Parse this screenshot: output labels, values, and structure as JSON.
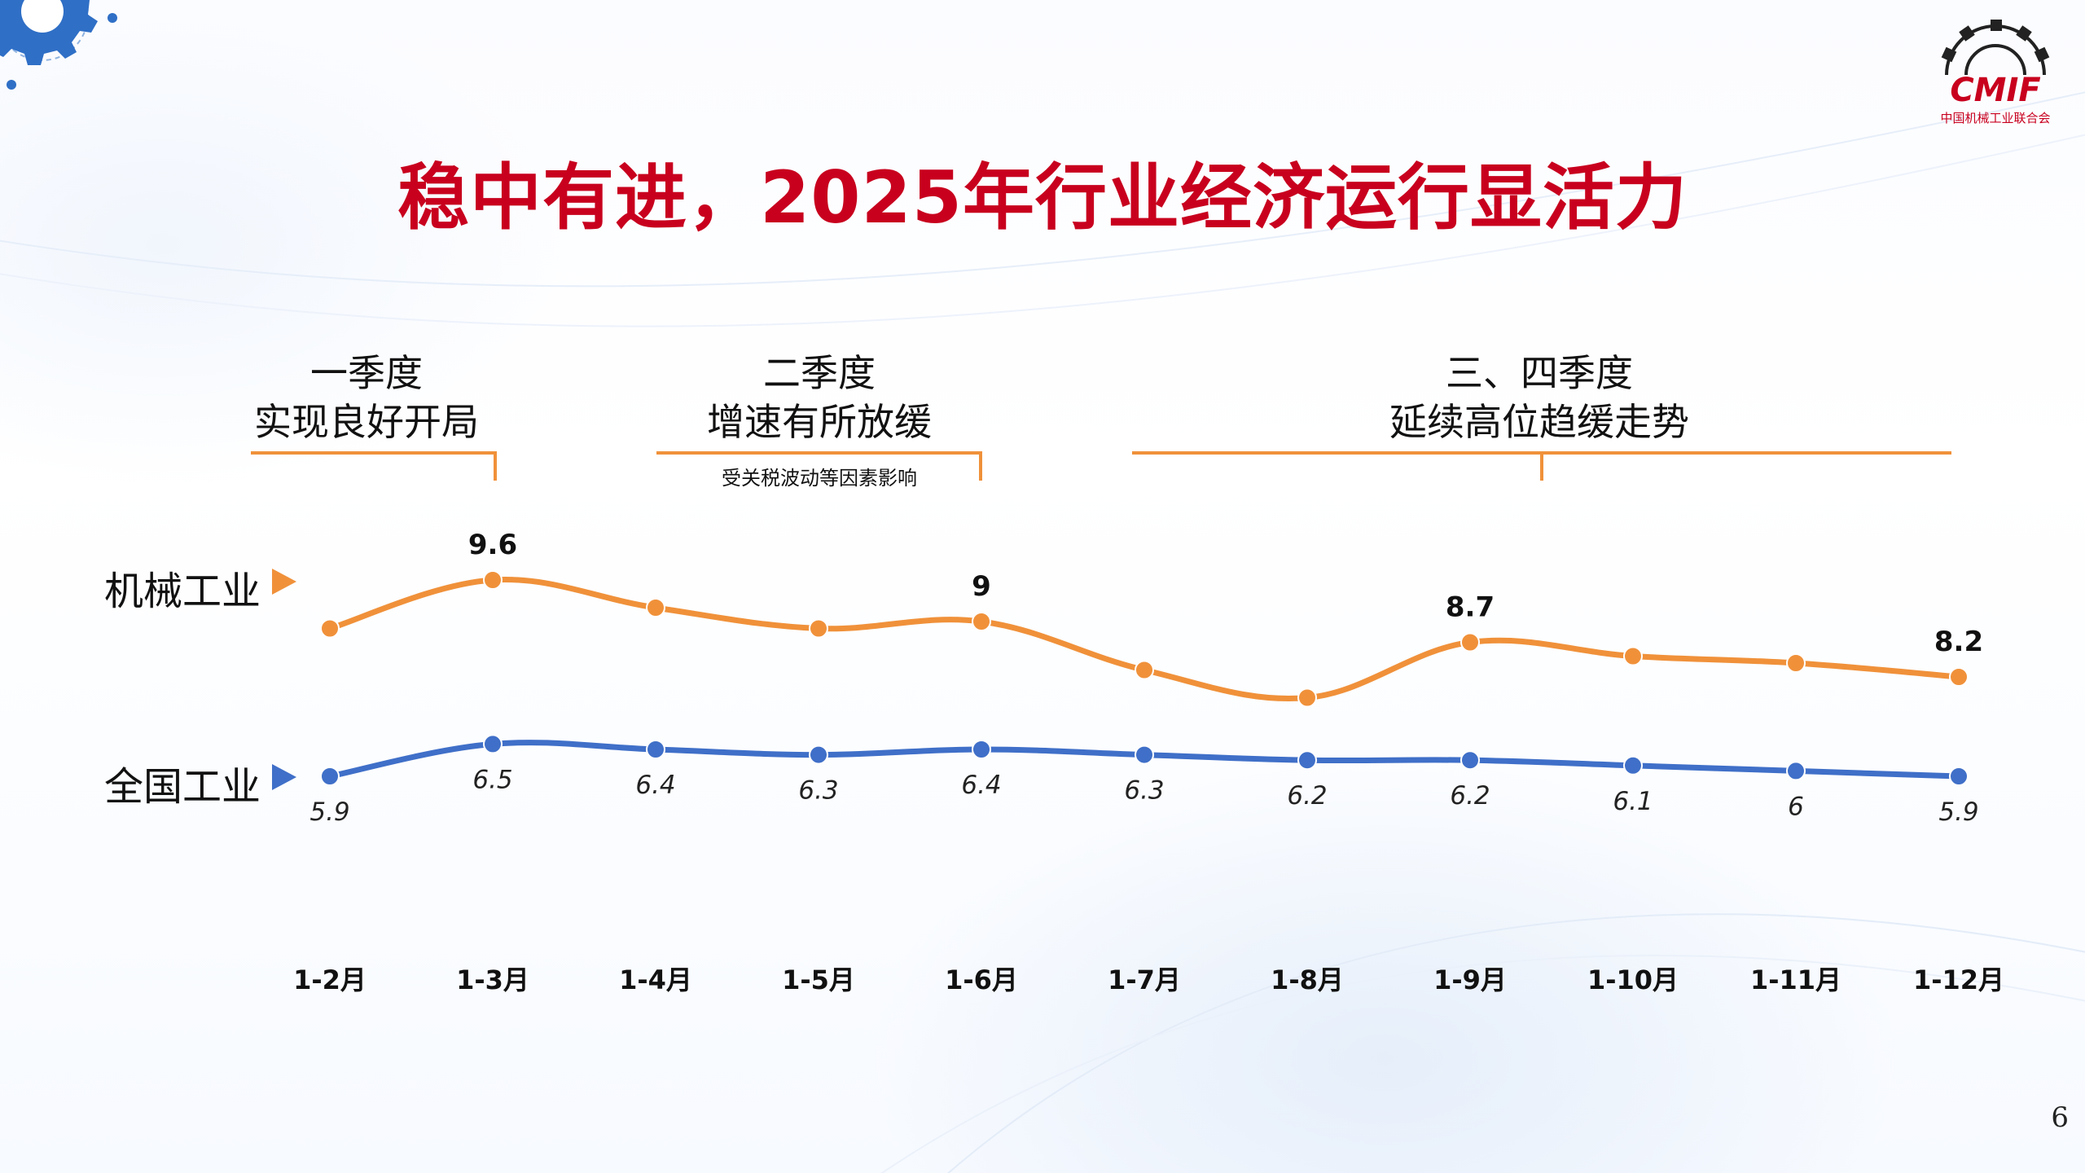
{
  "slide": {
    "title": "稳中有进，2025年行业经济运行显活力",
    "page_number": "6",
    "logo": {
      "mark": "CMIF",
      "subtitle": "中国机械工业联合会"
    }
  },
  "phases": [
    {
      "line1": "一季度",
      "line2": "实现良好开局",
      "note": ""
    },
    {
      "line1": "二季度",
      "line2": "增速有所放缓",
      "note": "受关税波动等因素影响"
    },
    {
      "line1": "三、四季度",
      "line2": "延续高位趋缓走势",
      "note": ""
    }
  ],
  "colors": {
    "title": "#c8001e",
    "machinery": "#f0913a",
    "national": "#3f6fc8",
    "bracket": "#f0913a"
  },
  "chart_data": {
    "type": "line",
    "categories": [
      "1-2月",
      "1-3月",
      "1-4月",
      "1-5月",
      "1-6月",
      "1-7月",
      "1-8月",
      "1-9月",
      "1-10月",
      "1-11月",
      "1-12月"
    ],
    "series": [
      {
        "name": "机械工业",
        "values": [
          8.9,
          9.6,
          9.2,
          8.9,
          9.0,
          8.3,
          7.9,
          8.7,
          8.5,
          8.4,
          8.2
        ],
        "labeled_values": {
          "1-3月": "9.6",
          "1-6月": "9",
          "1-9月": "8.7",
          "1-12月": "8.2"
        }
      },
      {
        "name": "全国工业",
        "values": [
          5.9,
          6.5,
          6.4,
          6.3,
          6.4,
          6.3,
          6.2,
          6.2,
          6.1,
          6.0,
          5.9
        ],
        "labeled_values": {
          "1-2月": "5.9",
          "1-3月": "6.5",
          "1-4月": "6.4",
          "1-5月": "6.3",
          "1-6月": "6.4",
          "1-7月": "6.3",
          "1-8月": "6.2",
          "1-9月": "6.2",
          "1-10月": "6.1",
          "1-11月": "6",
          "1-12月": "5.9"
        }
      }
    ],
    "grid": false,
    "legend": "left-inline"
  }
}
